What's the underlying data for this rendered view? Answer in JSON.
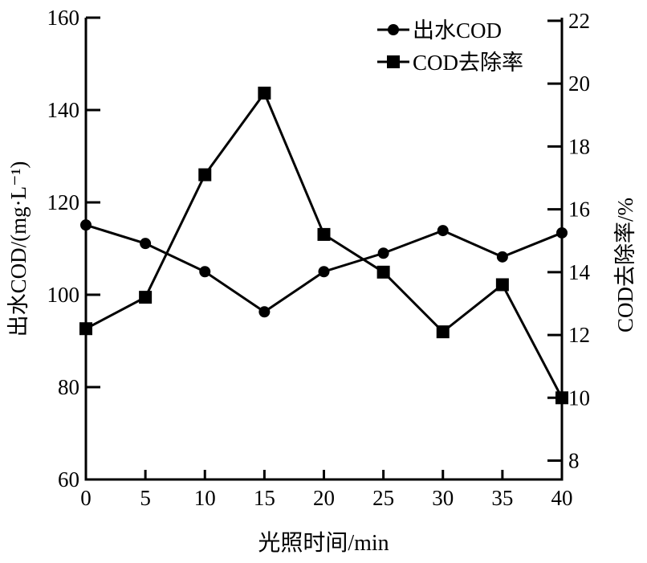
{
  "chart_data": {
    "type": "line",
    "xlabel": "光照时间/min",
    "ylabel_left": "出水COD/(mg·L⁻¹)",
    "ylabel_right": "COD去除率/%",
    "x": [
      0,
      5,
      10,
      15,
      20,
      25,
      30,
      35,
      40
    ],
    "xlim": [
      0,
      40
    ],
    "xticks": [
      "0",
      "5",
      "10",
      "15",
      "20",
      "25",
      "30",
      "35",
      "40"
    ],
    "ylim_left": [
      60,
      160
    ],
    "yticks_left": [
      "60",
      "80",
      "100",
      "120",
      "140",
      "160"
    ],
    "ylim_right": [
      7.4,
      22.1
    ],
    "yticks_right": [
      "8",
      "10",
      "12",
      "14",
      "16",
      "18",
      "20",
      "22"
    ],
    "grid": false,
    "legend_position": "top-right",
    "series": [
      {
        "name": "出水COD",
        "axis": "left",
        "marker": "circle",
        "color": "#000000",
        "values": [
          115.1,
          111.1,
          105.0,
          96.3,
          105.0,
          109.0,
          113.9,
          108.2,
          113.4
        ]
      },
      {
        "name": "COD去除率",
        "axis": "right",
        "marker": "square",
        "color": "#000000",
        "values": [
          12.2,
          13.2,
          17.1,
          19.7,
          15.2,
          14.0,
          12.1,
          13.6,
          10.0
        ]
      }
    ]
  }
}
